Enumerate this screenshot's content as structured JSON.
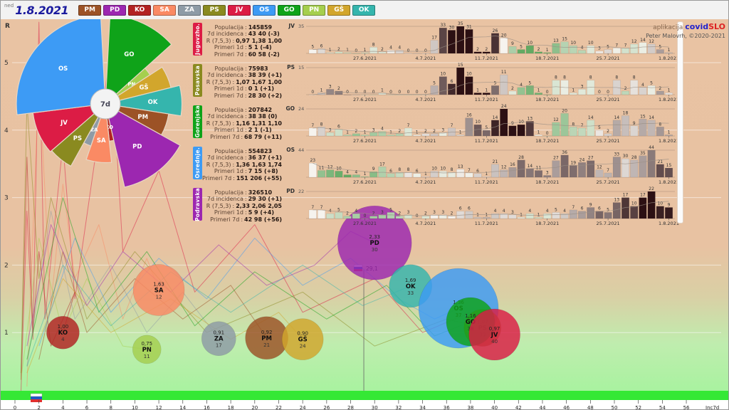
{
  "toolbar": {
    "day": "ned",
    "date": "1.8.2021",
    "regions": [
      {
        "code": "PM",
        "color": "#9c5226"
      },
      {
        "code": "PD",
        "color": "#9c27b0"
      },
      {
        "code": "KO",
        "color": "#b22222"
      },
      {
        "code": "SA",
        "color": "#fa8a64"
      },
      {
        "code": "ZA",
        "color": "#8e9ba6"
      },
      {
        "code": "PS",
        "color": "#8a8a20"
      },
      {
        "code": "JV",
        "color": "#dc1c45"
      },
      {
        "code": "OS",
        "color": "#3d9bf5"
      },
      {
        "code": "GO",
        "color": "#0fa319"
      },
      {
        "code": "PN",
        "color": "#a5cf4e"
      },
      {
        "code": "GŠ",
        "color": "#d2a62c"
      },
      {
        "code": "OK",
        "color": "#35b5ad"
      }
    ]
  },
  "credit": {
    "prefix": "aplikacija",
    "covid": "covid",
    "slo": "SLO",
    "author": "Peter Malovrh, ©2020-2021"
  },
  "stat_labels": {
    "populacija": "Populacija",
    "incidenca": "7d incidenca",
    "r": "R (7,5,3)",
    "primeri_1d": "Primeri 1d",
    "primeri_7d": "Primeri 7d"
  },
  "panels": [
    {
      "code": "JV",
      "name": "Jugovzho.",
      "color": "#dc1c45",
      "stats": {
        "populacija": "145859",
        "incidenca": "43 40 (-3)",
        "r": "0,97 1,38 1,00",
        "primeri_1d": "5 1 (-4)",
        "primeri_7d": "60 58 (-2)"
      }
    },
    {
      "code": "PS",
      "name": "Posavska",
      "color": "#8a8a20",
      "stats": {
        "populacija": "75983",
        "incidenca": "38 39 (+1)",
        "r": "1,07 1,67 1,00",
        "primeri_1d": "0 1 (+1)",
        "primeri_7d": "28 30 (+2)"
      }
    },
    {
      "code": "GO",
      "name": "Gorenjska",
      "color": "#0fa319",
      "stats": {
        "populacija": "207842",
        "incidenca": "38 38 (0)",
        "r": "1,16 1,31 1,10",
        "primeri_1d": "2 1 (-1)",
        "primeri_7d": "68 79 (+11)"
      }
    },
    {
      "code": "OS",
      "name": "Osrednje.",
      "color": "#3d9bf5",
      "stats": {
        "populacija": "554823",
        "incidenca": "36 37 (+1)",
        "r": "1,36 1,63 1,74",
        "primeri_1d": "7 15 (+8)",
        "primeri_7d": "151 206 (+55)"
      }
    },
    {
      "code": "PD",
      "name": "Podravska",
      "color": "#9c27b0",
      "stats": {
        "populacija": "326510",
        "incidenca": "29 30 (+1)",
        "r": "2,33 2,06 2,05",
        "primeri_1d": "5 9 (+4)",
        "primeri_7d": "42 98 (+56)"
      }
    }
  ],
  "chart_data": [
    {
      "type": "bar",
      "region": "JV",
      "ymax": 35,
      "values": [
        5,
        6,
        1,
        2,
        1,
        0,
        1,
        8,
        2,
        4,
        4,
        0,
        0,
        0,
        17,
        33,
        30,
        35,
        31,
        2,
        2,
        26,
        20,
        9,
        5,
        10,
        2,
        1,
        13,
        15,
        10,
        4,
        10,
        3,
        5,
        7,
        7,
        12,
        14,
        12,
        5,
        1
      ]
    },
    {
      "type": "bar",
      "region": "PS",
      "ymax": 15,
      "values": [
        0,
        1,
        3,
        2,
        0,
        0,
        0,
        0,
        1,
        0,
        0,
        0,
        0,
        0,
        5,
        10,
        6,
        15,
        10,
        1,
        1,
        5,
        11,
        2,
        4,
        5,
        1,
        0,
        8,
        8,
        1,
        3,
        8,
        0,
        0,
        8,
        2,
        8,
        4,
        5,
        2,
        1
      ]
    },
    {
      "type": "bar",
      "region": "GO",
      "ymax": 24,
      "values": [
        7,
        8,
        3,
        6,
        1,
        2,
        1,
        3,
        4,
        1,
        2,
        7,
        1,
        2,
        2,
        3,
        7,
        1,
        16,
        10,
        5,
        14,
        24,
        9,
        10,
        13,
        1,
        0,
        12,
        20,
        8,
        7,
        14,
        5,
        2,
        14,
        18,
        9,
        15,
        14,
        8,
        1
      ]
    },
    {
      "type": "bar",
      "region": "OS",
      "ymax": 44,
      "values": [
        23,
        11,
        12,
        10,
        4,
        4,
        1,
        9,
        17,
        6,
        8,
        8,
        6,
        1,
        10,
        10,
        8,
        13,
        7,
        6,
        1,
        21,
        12,
        16,
        28,
        14,
        11,
        3,
        27,
        36,
        19,
        24,
        27,
        12,
        7,
        33,
        30,
        28,
        35,
        44,
        21,
        15
      ]
    },
    {
      "type": "bar",
      "region": "PD",
      "ymax": 22,
      "values": [
        7,
        7,
        4,
        5,
        2,
        4,
        0,
        2,
        3,
        5,
        2,
        3,
        0,
        2,
        3,
        3,
        2,
        6,
        6,
        1,
        1,
        4,
        4,
        3,
        1,
        4,
        1,
        4,
        5,
        4,
        7,
        6,
        9,
        6,
        5,
        13,
        17,
        10,
        17,
        22,
        10,
        9
      ]
    }
  ],
  "mini_dates": {
    "labels": [
      "27.6.2021",
      "4.7.2021",
      "11.7.2021",
      "18.7.2021",
      "25.7.2021",
      "1.8.2021"
    ],
    "indices": [
      6,
      13,
      20,
      27,
      34,
      41
    ]
  },
  "rose": {
    "center_label": "7d",
    "segments": [
      {
        "code": "GO",
        "color": "#0fa319",
        "a0": 3,
        "a1": 48,
        "r": 1.0
      },
      {
        "code": "PN",
        "color": "#a5cf4e",
        "a0": 48,
        "a1": 57,
        "r": 0.6
      },
      {
        "code": "GŠ",
        "color": "#d2a62c",
        "a0": 57,
        "a1": 76,
        "r": 0.76
      },
      {
        "code": "OK",
        "color": "#35b5ad",
        "a0": 76,
        "a1": 99,
        "r": 0.86
      },
      {
        "code": "PM",
        "color": "#9c5226",
        "a0": 99,
        "a1": 119,
        "r": 0.72
      },
      {
        "code": "PD",
        "color": "#9c27b0",
        "a0": 119,
        "a1": 167,
        "r": 0.96
      },
      {
        "code": "KO",
        "color": "#b22222",
        "a0": 167,
        "a1": 174,
        "r": 0.42
      },
      {
        "code": "SA",
        "color": "#fa8a64",
        "a0": 174,
        "a1": 199,
        "r": 0.66
      },
      {
        "code": "ZA",
        "color": "#8e9ba6",
        "a0": 199,
        "a1": 209,
        "r": 0.5
      },
      {
        "code": "PS",
        "color": "#8a8a20",
        "a0": 209,
        "a1": 229,
        "r": 0.8
      },
      {
        "code": "JV",
        "color": "#dc1c45",
        "a0": 229,
        "a1": 263,
        "r": 0.82
      },
      {
        "code": "OS",
        "color": "#3d9bf5",
        "a0": 263,
        "a1": 357,
        "r": 1.0
      }
    ]
  },
  "scatter": {
    "ylabel": "R",
    "xlabel": "Inc7d",
    "yticks": [
      "0",
      "1",
      "2",
      "3",
      "4",
      "5"
    ],
    "xtick_step": 2,
    "xtick_max": 56,
    "marker": {
      "label": "29,1",
      "inc": 29.1
    },
    "bubbles": [
      {
        "code": "KO",
        "color": "#b22222",
        "r_label": "1,00",
        "inc": 4,
        "R": 1.0,
        "radius": 23
      },
      {
        "code": "SA",
        "color": "#fa8a64",
        "r_label": "1,63",
        "inc": 12,
        "R": 1.63,
        "radius": 36
      },
      {
        "code": "PN",
        "color": "#a5cf4e",
        "r_label": "0,75",
        "inc": 11,
        "R": 0.75,
        "radius": 20
      },
      {
        "code": "ZA",
        "color": "#8e9ba6",
        "r_label": "0,91",
        "inc": 17,
        "R": 0.91,
        "radius": 24
      },
      {
        "code": "PM",
        "color": "#9c5226",
        "r_label": "0,92",
        "inc": 21,
        "R": 0.92,
        "radius": 30
      },
      {
        "code": "GŠ",
        "color": "#d2a62c",
        "r_label": "0,90",
        "inc": 24,
        "R": 0.9,
        "radius": 29
      },
      {
        "code": "PD",
        "color": "#9c27b0",
        "r_label": "2,33",
        "inc": 30,
        "R": 2.33,
        "radius": 52
      },
      {
        "code": "OK",
        "color": "#35b5ad",
        "r_label": "1,69",
        "inc": 33,
        "R": 1.69,
        "radius": 30
      },
      {
        "code": "OS",
        "color": "#3d9bf5",
        "r_label": "1,36",
        "inc": 37,
        "R": 1.36,
        "radius": 56
      },
      {
        "code": "PS",
        "color": "#8a8a20",
        "r_label": "1,07",
        "inc": 39,
        "R": 1.07,
        "radius": 26
      },
      {
        "code": "GO",
        "color": "#0fa319",
        "r_label": "1,16",
        "inc": 38,
        "R": 1.16,
        "radius": 34
      },
      {
        "code": "JV",
        "color": "#dc1c45",
        "r_label": "0,97",
        "inc": 40,
        "R": 0.97,
        "radius": 36
      }
    ],
    "trails": [
      {
        "code": "JV",
        "color": "#dc1c45",
        "points": [
          [
            0.5,
            0.1
          ],
          [
            1,
            2.8
          ],
          [
            1.5,
            0.9
          ],
          [
            2,
            5.6
          ],
          [
            2.5,
            1.2
          ],
          [
            4,
            3.8
          ],
          [
            5,
            1.5
          ],
          [
            8,
            5.2
          ],
          [
            9,
            2.2
          ],
          [
            12,
            3.4
          ],
          [
            15,
            1.6
          ],
          [
            20,
            2.6
          ],
          [
            24,
            1.3
          ],
          [
            30,
            1.8
          ],
          [
            34,
            1.0
          ],
          [
            38,
            1.3
          ],
          [
            40,
            0.97
          ]
        ]
      },
      {
        "code": "SA",
        "color": "#fa8a64",
        "points": [
          [
            1,
            0.2
          ],
          [
            2,
            4.8
          ],
          [
            3,
            1.4
          ],
          [
            4,
            3.2
          ],
          [
            5,
            1.8
          ],
          [
            7,
            2.6
          ],
          [
            9,
            1.2
          ],
          [
            11,
            2.1
          ],
          [
            12,
            1.63
          ]
        ]
      },
      {
        "code": "KO",
        "color": "#b22222",
        "points": [
          [
            0.5,
            0.3
          ],
          [
            1,
            3.6
          ],
          [
            1.5,
            1.0
          ],
          [
            2,
            2.2
          ],
          [
            3,
            0.8
          ],
          [
            5,
            1.6
          ],
          [
            4,
            1.0
          ]
        ]
      },
      {
        "code": "PS",
        "color": "#8a8a20",
        "points": [
          [
            0.5,
            0.4
          ],
          [
            1,
            4.4
          ],
          [
            2,
            1.8
          ],
          [
            3,
            3.0
          ],
          [
            6,
            1.2
          ],
          [
            10,
            2.2
          ],
          [
            16,
            1.0
          ],
          [
            24,
            1.6
          ],
          [
            30,
            0.8
          ],
          [
            36,
            1.2
          ],
          [
            39,
            1.07
          ]
        ]
      },
      {
        "code": "ZA",
        "color": "#8e9ba6",
        "points": [
          [
            1,
            0.5
          ],
          [
            3,
            2.8
          ],
          [
            5,
            1.2
          ],
          [
            8,
            2.0
          ],
          [
            11,
            1.0
          ],
          [
            14,
            1.6
          ],
          [
            17,
            0.91
          ]
        ]
      },
      {
        "code": "PM",
        "color": "#9c5226",
        "points": [
          [
            2,
            0.6
          ],
          [
            4,
            2.2
          ],
          [
            6,
            1.0
          ],
          [
            10,
            1.8
          ],
          [
            14,
            1.2
          ],
          [
            18,
            1.7
          ],
          [
            21,
            0.92
          ]
        ]
      },
      {
        "code": "GŠ",
        "color": "#d2a62c",
        "points": [
          [
            1,
            0.4
          ],
          [
            4,
            1.8
          ],
          [
            8,
            1.0
          ],
          [
            13,
            1.5
          ],
          [
            18,
            0.9
          ],
          [
            22,
            1.3
          ],
          [
            24,
            0.9
          ]
        ]
      },
      {
        "code": "PN",
        "color": "#a5cf4e",
        "points": [
          [
            0.5,
            0.3
          ],
          [
            2,
            2.4
          ],
          [
            4,
            1.0
          ],
          [
            6,
            1.8
          ],
          [
            9,
            0.8
          ],
          [
            11,
            0.75
          ]
        ]
      },
      {
        "code": "OS",
        "color": "#3d9bf5",
        "points": [
          [
            2,
            0.8
          ],
          [
            5,
            2.4
          ],
          [
            8,
            1.3
          ],
          [
            12,
            2.1
          ],
          [
            16,
            1.5
          ],
          [
            20,
            2.4
          ],
          [
            24,
            1.7
          ],
          [
            28,
            2.1
          ],
          [
            32,
            1.5
          ],
          [
            35,
            1.2
          ],
          [
            37,
            1.36
          ]
        ]
      },
      {
        "code": "GO",
        "color": "#0fa319",
        "points": [
          [
            1,
            0.6
          ],
          [
            4,
            3.0
          ],
          [
            7,
            1.3
          ],
          [
            11,
            2.2
          ],
          [
            15,
            1.1
          ],
          [
            20,
            1.9
          ],
          [
            26,
            1.2
          ],
          [
            31,
            1.7
          ],
          [
            35,
            0.95
          ],
          [
            38,
            1.16
          ]
        ]
      },
      {
        "code": "PD",
        "color": "#9c27b0",
        "points": [
          [
            1,
            0.8
          ],
          [
            3,
            2.6
          ],
          [
            6,
            1.4
          ],
          [
            9,
            2.2
          ],
          [
            13,
            1.6
          ],
          [
            17,
            2.3
          ],
          [
            21,
            1.7
          ],
          [
            25,
            2.0
          ],
          [
            28,
            2.5
          ],
          [
            30,
            2.33
          ]
        ]
      },
      {
        "code": "OK",
        "color": "#35b5ad",
        "points": [
          [
            1,
            0.5
          ],
          [
            4,
            2.0
          ],
          [
            8,
            1.1
          ],
          [
            13,
            1.9
          ],
          [
            18,
            1.3
          ],
          [
            24,
            2.0
          ],
          [
            29,
            1.4
          ],
          [
            33,
            1.69
          ]
        ]
      }
    ]
  }
}
